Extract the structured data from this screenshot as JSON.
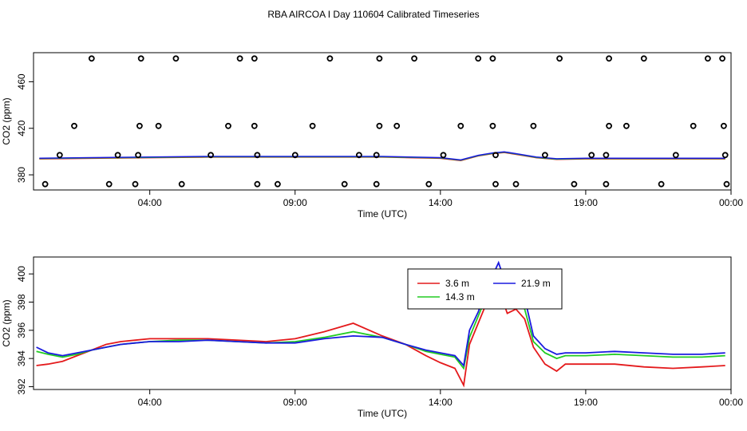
{
  "title": "RBA AIRCOA I  Day 110604  Calibrated Timeseries",
  "chart_data": [
    {
      "type": "scatter+line",
      "xlabel": "Time (UTC)",
      "ylabel": "CO2 (ppm)",
      "xlim": [
        0,
        24
      ],
      "ylim": [
        367,
        485
      ],
      "x_ticks": [
        {
          "value": 4,
          "label": "04:00"
        },
        {
          "value": 9,
          "label": "09:00"
        },
        {
          "value": 14,
          "label": "14:00"
        },
        {
          "value": 19,
          "label": "19:00"
        },
        {
          "value": 24,
          "label": "00:00"
        }
      ],
      "y_ticks": [
        {
          "value": 380,
          "label": "380"
        },
        {
          "value": 420,
          "label": "420"
        },
        {
          "value": 460,
          "label": "460"
        }
      ],
      "calibration_points": [
        [
          0.4,
          372
        ],
        [
          0.9,
          397
        ],
        [
          1.4,
          422
        ],
        [
          2.0,
          480
        ],
        [
          2.6,
          372
        ],
        [
          2.9,
          397
        ],
        [
          3.5,
          372
        ],
        [
          3.6,
          397
        ],
        [
          3.65,
          422
        ],
        [
          3.7,
          480
        ],
        [
          4.3,
          422
        ],
        [
          4.9,
          480
        ],
        [
          5.1,
          372
        ],
        [
          6.1,
          397
        ],
        [
          6.7,
          422
        ],
        [
          7.1,
          480
        ],
        [
          7.6,
          480
        ],
        [
          7.6,
          422
        ],
        [
          7.7,
          397
        ],
        [
          7.7,
          372
        ],
        [
          8.4,
          372
        ],
        [
          9.0,
          397
        ],
        [
          9.6,
          422
        ],
        [
          10.2,
          480
        ],
        [
          10.7,
          372
        ],
        [
          11.2,
          397
        ],
        [
          11.8,
          372
        ],
        [
          11.8,
          397
        ],
        [
          11.9,
          422
        ],
        [
          11.9,
          480
        ],
        [
          12.5,
          422
        ],
        [
          13.1,
          480
        ],
        [
          13.6,
          372
        ],
        [
          14.1,
          397
        ],
        [
          14.7,
          422
        ],
        [
          15.3,
          480
        ],
        [
          15.8,
          480
        ],
        [
          15.8,
          422
        ],
        [
          15.9,
          397
        ],
        [
          15.9,
          372
        ],
        [
          16.6,
          372
        ],
        [
          17.2,
          422
        ],
        [
          17.6,
          397
        ],
        [
          18.1,
          480
        ],
        [
          18.6,
          372
        ],
        [
          19.2,
          397
        ],
        [
          19.7,
          372
        ],
        [
          19.7,
          397
        ],
        [
          19.8,
          422
        ],
        [
          19.8,
          480
        ],
        [
          20.4,
          422
        ],
        [
          21.0,
          480
        ],
        [
          21.6,
          372
        ],
        [
          22.1,
          397
        ],
        [
          22.7,
          422
        ],
        [
          23.2,
          480
        ],
        [
          23.7,
          480
        ],
        [
          23.75,
          422
        ],
        [
          23.8,
          397
        ],
        [
          23.85,
          372
        ]
      ],
      "series": [
        {
          "name": "3.6 m",
          "color": "#e41a1c"
        },
        {
          "name": "14.3 m",
          "color": "#22cc22"
        },
        {
          "name": "21.9 m",
          "color": "#1a1adf"
        }
      ],
      "line_points": {
        "x": [
          0.2,
          2,
          4,
          6,
          8,
          10,
          12,
          14,
          14.7,
          15.3,
          15.8,
          16.2,
          16.7,
          17.3,
          18,
          19,
          20,
          22,
          23.8
        ],
        "y": [
          394,
          394.5,
          395,
          395.5,
          395.5,
          395.5,
          395.5,
          394.5,
          392.5,
          396.5,
          398.5,
          399.5,
          397.5,
          395,
          393.5,
          394,
          394,
          394,
          394
        ]
      }
    },
    {
      "type": "line",
      "xlabel": "Time (UTC)",
      "ylabel": "CO2 (ppm)",
      "xlim": [
        0,
        24
      ],
      "ylim": [
        391.8,
        401.2
      ],
      "x_ticks": [
        {
          "value": 4,
          "label": "04:00"
        },
        {
          "value": 9,
          "label": "09:00"
        },
        {
          "value": 14,
          "label": "14:00"
        },
        {
          "value": 19,
          "label": "19:00"
        },
        {
          "value": 24,
          "label": "00:00"
        }
      ],
      "y_ticks": [
        {
          "value": 392,
          "label": "392"
        },
        {
          "value": 394,
          "label": "394"
        },
        {
          "value": 396,
          "label": "396"
        },
        {
          "value": 398,
          "label": "398"
        },
        {
          "value": 400,
          "label": "400"
        }
      ],
      "legend": {
        "placement": "top-center",
        "entries": [
          {
            "label": "3.6 m",
            "color": "#e41a1c"
          },
          {
            "label": "14.3 m",
            "color": "#22cc22"
          },
          {
            "label": "21.9 m",
            "color": "#1a1adf"
          }
        ]
      },
      "series": [
        {
          "name": "3.6 m",
          "color": "#e41a1c",
          "x": [
            0.1,
            0.5,
            1.0,
            1.5,
            2.0,
            2.5,
            3.0,
            3.5,
            4.0,
            5.0,
            6.0,
            7.0,
            8.0,
            9.0,
            10.0,
            11.0,
            12.0,
            12.8,
            13.5,
            14.0,
            14.5,
            14.8,
            15.0,
            15.3,
            15.6,
            16.0,
            16.3,
            16.6,
            16.9,
            17.2,
            17.6,
            18.0,
            18.3,
            19.0,
            20.0,
            21.0,
            22.0,
            23.0,
            23.8
          ],
          "y": [
            393.5,
            393.6,
            393.8,
            394.2,
            394.6,
            395.0,
            395.2,
            395.3,
            395.4,
            395.4,
            395.4,
            395.3,
            395.2,
            395.4,
            395.9,
            396.5,
            395.6,
            395.0,
            394.2,
            393.7,
            393.3,
            392.1,
            395.0,
            396.5,
            398.0,
            399.0,
            397.2,
            397.5,
            396.8,
            394.8,
            393.6,
            393.1,
            393.6,
            393.6,
            393.6,
            393.4,
            393.3,
            393.4,
            393.5
          ]
        },
        {
          "name": "14.3 m",
          "color": "#22cc22",
          "x": [
            0.1,
            0.5,
            1.0,
            1.5,
            2.0,
            2.5,
            3.0,
            3.5,
            4.0,
            5.0,
            6.0,
            7.0,
            8.0,
            9.0,
            10.0,
            11.0,
            12.0,
            12.8,
            13.5,
            14.0,
            14.5,
            14.8,
            15.0,
            15.3,
            15.6,
            16.0,
            16.3,
            16.6,
            16.9,
            17.2,
            17.6,
            18.0,
            18.3,
            19.0,
            20.0,
            21.0,
            22.0,
            23.0,
            23.8
          ],
          "y": [
            394.5,
            394.3,
            394.1,
            394.3,
            394.6,
            394.8,
            395.0,
            395.1,
            395.2,
            395.3,
            395.3,
            395.2,
            395.1,
            395.2,
            395.5,
            395.9,
            395.5,
            395.0,
            394.5,
            394.3,
            394.1,
            393.3,
            395.5,
            397.0,
            398.5,
            399.8,
            398.5,
            398.3,
            397.5,
            395.2,
            394.4,
            394.0,
            394.2,
            394.2,
            394.3,
            394.2,
            394.1,
            394.1,
            394.2
          ]
        },
        {
          "name": "21.9 m",
          "color": "#1a1adf",
          "x": [
            0.1,
            0.5,
            1.0,
            1.5,
            2.0,
            2.5,
            3.0,
            3.5,
            4.0,
            5.0,
            6.0,
            7.0,
            8.0,
            9.0,
            10.0,
            11.0,
            12.0,
            12.8,
            13.5,
            14.0,
            14.5,
            14.8,
            15.0,
            15.3,
            15.6,
            16.0,
            16.3,
            16.6,
            16.9,
            17.2,
            17.6,
            18.0,
            18.3,
            19.0,
            20.0,
            21.0,
            22.0,
            23.0,
            23.8
          ],
          "y": [
            394.8,
            394.4,
            394.2,
            394.4,
            394.6,
            394.8,
            395.0,
            395.1,
            395.2,
            395.2,
            395.3,
            395.2,
            395.1,
            395.1,
            395.4,
            395.6,
            395.5,
            395.0,
            394.6,
            394.4,
            394.2,
            393.5,
            396.0,
            397.3,
            399.0,
            400.8,
            399.0,
            399.2,
            398.3,
            395.6,
            394.7,
            394.3,
            394.4,
            394.4,
            394.5,
            394.4,
            394.3,
            394.3,
            394.4
          ]
        }
      ]
    }
  ]
}
